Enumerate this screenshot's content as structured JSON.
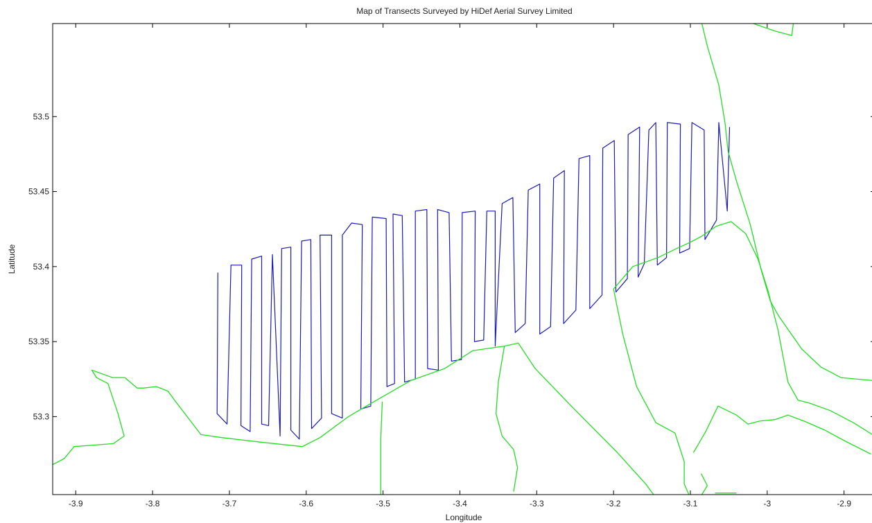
{
  "chart_data": {
    "type": "line",
    "title": "Map of Transects Surveyed by HiDef Aerial Survey Limited",
    "xlabel": "Longitude",
    "ylabel": "Latitude",
    "xlim": [
      -3.93,
      -2.86
    ],
    "ylim": [
      53.248,
      53.562
    ],
    "xticks": [
      -3.9,
      -3.8,
      -3.7,
      -3.6,
      -3.5,
      -3.4,
      -3.3,
      -3.2,
      -3.1,
      -3.0,
      -2.9
    ],
    "xtick_labels": [
      "-3.9",
      "-3.8",
      "-3.7",
      "-3.6",
      "-3.5",
      "-3.4",
      "-3.3",
      "-3.2",
      "-3.1",
      "-3",
      "-2.9"
    ],
    "yticks": [
      53.3,
      53.35,
      53.4,
      53.45,
      53.5
    ],
    "ytick_labels": [
      "53.3",
      "53.35",
      "53.4",
      "53.45",
      "53.5"
    ],
    "grid": false,
    "colors": {
      "transects": "#1a1ab4",
      "coastline": "#22dd22",
      "axes": "#000000"
    },
    "series": [
      {
        "role": "transects",
        "points": [
          [
            -3.715,
            53.396
          ],
          [
            -3.716,
            53.302
          ],
          [
            -3.703,
            53.295
          ],
          [
            -3.698,
            53.401
          ],
          [
            -3.684,
            53.401
          ],
          [
            -3.685,
            53.294
          ],
          [
            -3.673,
            53.29
          ],
          [
            -3.671,
            53.405
          ],
          [
            -3.658,
            53.407
          ],
          [
            -3.658,
            53.295
          ],
          [
            -3.649,
            53.294
          ],
          [
            -3.644,
            53.408
          ],
          [
            -3.634,
            53.287
          ],
          [
            -3.632,
            53.412
          ],
          [
            -3.62,
            53.413
          ],
          [
            -3.62,
            53.291
          ],
          [
            -3.609,
            53.285
          ],
          [
            -3.606,
            53.417
          ],
          [
            -3.594,
            53.418
          ],
          [
            -3.593,
            53.292
          ],
          [
            -3.58,
            53.299
          ],
          [
            -3.582,
            53.421
          ],
          [
            -3.567,
            53.421
          ],
          [
            -3.567,
            53.302
          ],
          [
            -3.553,
            53.299
          ],
          [
            -3.553,
            53.421
          ],
          [
            -3.541,
            53.429
          ],
          [
            -3.527,
            53.428
          ],
          [
            -3.529,
            53.305
          ],
          [
            -3.516,
            53.307
          ],
          [
            -3.514,
            53.433
          ],
          [
            -3.496,
            53.432
          ],
          [
            -3.495,
            53.32
          ],
          [
            -3.485,
            53.322
          ],
          [
            -3.487,
            53.435
          ],
          [
            -3.475,
            53.434
          ],
          [
            -3.472,
            53.323
          ],
          [
            -3.458,
            53.325
          ],
          [
            -3.458,
            53.437
          ],
          [
            -3.443,
            53.438
          ],
          [
            -3.442,
            53.332
          ],
          [
            -3.428,
            53.331
          ],
          [
            -3.429,
            53.438
          ],
          [
            -3.414,
            53.436
          ],
          [
            -3.411,
            53.337
          ],
          [
            -3.398,
            53.338
          ],
          [
            -3.397,
            53.436
          ],
          [
            -3.38,
            53.437
          ],
          [
            -3.381,
            53.35
          ],
          [
            -3.369,
            53.351
          ],
          [
            -3.365,
            53.437
          ],
          [
            -3.354,
            53.437
          ],
          [
            -3.354,
            53.347
          ],
          [
            -3.345,
            53.442
          ],
          [
            -3.331,
            53.446
          ],
          [
            -3.328,
            53.356
          ],
          [
            -3.315,
            53.362
          ],
          [
            -3.311,
            53.451
          ],
          [
            -3.296,
            53.455
          ],
          [
            -3.296,
            53.355
          ],
          [
            -3.282,
            53.36
          ],
          [
            -3.278,
            53.459
          ],
          [
            -3.264,
            53.464
          ],
          [
            -3.265,
            53.362
          ],
          [
            -3.249,
            53.371
          ],
          [
            -3.245,
            53.472
          ],
          [
            -3.231,
            53.474
          ],
          [
            -3.231,
            53.372
          ],
          [
            -3.215,
            53.381
          ],
          [
            -3.214,
            53.479
          ],
          [
            -3.199,
            53.484
          ],
          [
            -3.197,
            53.383
          ],
          [
            -3.182,
            53.392
          ],
          [
            -3.181,
            53.488
          ],
          [
            -3.166,
            53.493
          ],
          [
            -3.168,
            53.393
          ],
          [
            -3.16,
            53.402
          ],
          [
            -3.154,
            53.491
          ],
          [
            -3.145,
            53.496
          ],
          [
            -3.143,
            53.401
          ],
          [
            -3.131,
            53.406
          ],
          [
            -3.13,
            53.496
          ],
          [
            -3.113,
            53.495
          ],
          [
            -3.114,
            53.409
          ],
          [
            -3.101,
            53.412
          ],
          [
            -3.098,
            53.496
          ],
          [
            -3.082,
            53.491
          ],
          [
            -3.081,
            53.418
          ],
          [
            -3.066,
            53.431
          ],
          [
            -3.063,
            53.496
          ],
          [
            -3.052,
            53.437
          ],
          [
            -3.049,
            53.493
          ]
        ]
      },
      {
        "role": "coastline",
        "points": [
          [
            -3.93,
            53.268
          ],
          [
            -3.915,
            53.272
          ],
          [
            -3.902,
            53.28
          ],
          [
            -3.876,
            53.281
          ],
          [
            -3.851,
            53.282
          ],
          [
            -3.837,
            53.287
          ],
          [
            -3.845,
            53.302
          ],
          [
            -3.858,
            53.322
          ],
          [
            -3.873,
            53.326
          ],
          [
            -3.879,
            53.331
          ],
          [
            -3.852,
            53.326
          ],
          [
            -3.836,
            53.326
          ],
          [
            -3.82,
            53.319
          ],
          [
            -3.812,
            53.319
          ],
          [
            -3.795,
            53.32
          ],
          [
            -3.78,
            53.317
          ],
          [
            -3.77,
            53.31
          ],
          [
            -3.737,
            53.288
          ],
          [
            -3.71,
            53.286
          ],
          [
            -3.66,
            53.283
          ],
          [
            -3.605,
            53.28
          ],
          [
            -3.582,
            53.286
          ],
          [
            -3.545,
            53.3
          ],
          [
            -3.505,
            53.312
          ],
          [
            -3.464,
            53.324
          ],
          [
            -3.42,
            53.332
          ],
          [
            -3.383,
            53.344
          ],
          [
            -3.342,
            53.347
          ],
          [
            -3.324,
            53.349
          ],
          [
            -3.302,
            53.332
          ],
          [
            -3.255,
            53.307
          ],
          [
            -3.195,
            53.276
          ],
          [
            -3.158,
            53.255
          ],
          [
            -3.148,
            53.248
          ]
        ]
      },
      {
        "role": "coastline",
        "points": [
          [
            -3.2,
            53.385
          ],
          [
            -3.175,
            53.4
          ],
          [
            -3.142,
            53.406
          ],
          [
            -3.118,
            53.412
          ],
          [
            -3.101,
            53.416
          ],
          [
            -3.086,
            53.42
          ],
          [
            -3.066,
            53.427
          ],
          [
            -3.047,
            53.43
          ],
          [
            -3.028,
            53.422
          ],
          [
            -3.012,
            53.405
          ],
          [
            -2.999,
            53.384
          ],
          [
            -2.986,
            53.358
          ],
          [
            -2.973,
            53.323
          ],
          [
            -2.96,
            53.311
          ],
          [
            -2.945,
            53.309
          ],
          [
            -2.918,
            53.304
          ],
          [
            -2.888,
            53.296
          ],
          [
            -2.86,
            53.287
          ]
        ]
      },
      {
        "role": "coastline",
        "points": [
          [
            -3.2,
            53.385
          ],
          [
            -3.188,
            53.355
          ],
          [
            -3.17,
            53.32
          ],
          [
            -3.145,
            53.296
          ],
          [
            -3.12,
            53.289
          ],
          [
            -3.108,
            53.27
          ],
          [
            -3.108,
            53.255
          ],
          [
            -3.102,
            53.248
          ]
        ]
      },
      {
        "role": "coastline",
        "points": [
          [
            -3.342,
            53.347
          ],
          [
            -3.35,
            53.323
          ],
          [
            -3.353,
            53.302
          ],
          [
            -3.345,
            53.287
          ],
          [
            -3.33,
            53.278
          ],
          [
            -3.325,
            53.266
          ],
          [
            -3.33,
            53.25
          ]
        ]
      },
      {
        "role": "coastline",
        "points": [
          [
            -3.501,
            53.31
          ],
          [
            -3.503,
            53.285
          ],
          [
            -3.503,
            53.248
          ]
        ]
      },
      {
        "role": "coastline",
        "points": [
          [
            -3.085,
            53.562
          ],
          [
            -3.078,
            53.547
          ],
          [
            -3.063,
            53.521
          ],
          [
            -3.055,
            53.496
          ],
          [
            -3.051,
            53.477
          ],
          [
            -3.04,
            53.457
          ],
          [
            -3.022,
            53.428
          ],
          [
            -3.008,
            53.398
          ],
          [
            -2.996,
            53.377
          ],
          [
            -2.985,
            53.367
          ],
          [
            -2.955,
            53.345
          ],
          [
            -2.93,
            53.333
          ],
          [
            -2.904,
            53.326
          ],
          [
            -2.862,
            53.324
          ]
        ]
      },
      {
        "role": "coastline",
        "points": [
          [
            -3.096,
            53.276
          ],
          [
            -3.08,
            53.29
          ],
          [
            -3.064,
            53.307
          ],
          [
            -3.04,
            53.301
          ],
          [
            -3.025,
            53.295
          ],
          [
            -3.01,
            53.297
          ],
          [
            -2.99,
            53.298
          ],
          [
            -2.973,
            53.301
          ],
          [
            -2.952,
            53.297
          ],
          [
            -2.925,
            53.291
          ],
          [
            -2.9,
            53.284
          ],
          [
            -2.865,
            53.275
          ]
        ]
      },
      {
        "role": "coastline",
        "points": [
          [
            -3.018,
            53.562
          ],
          [
            -2.99,
            53.557
          ],
          [
            -2.968,
            53.554
          ],
          [
            -2.966,
            53.562
          ]
        ]
      },
      {
        "role": "coastline",
        "points": [
          [
            -3.086,
            53.262
          ],
          [
            -3.078,
            53.254
          ],
          [
            -3.085,
            53.248
          ]
        ]
      },
      {
        "role": "coastline",
        "points": [
          [
            -3.068,
            53.249
          ],
          [
            -3.052,
            53.249
          ],
          [
            -3.04,
            53.249
          ]
        ]
      }
    ]
  }
}
